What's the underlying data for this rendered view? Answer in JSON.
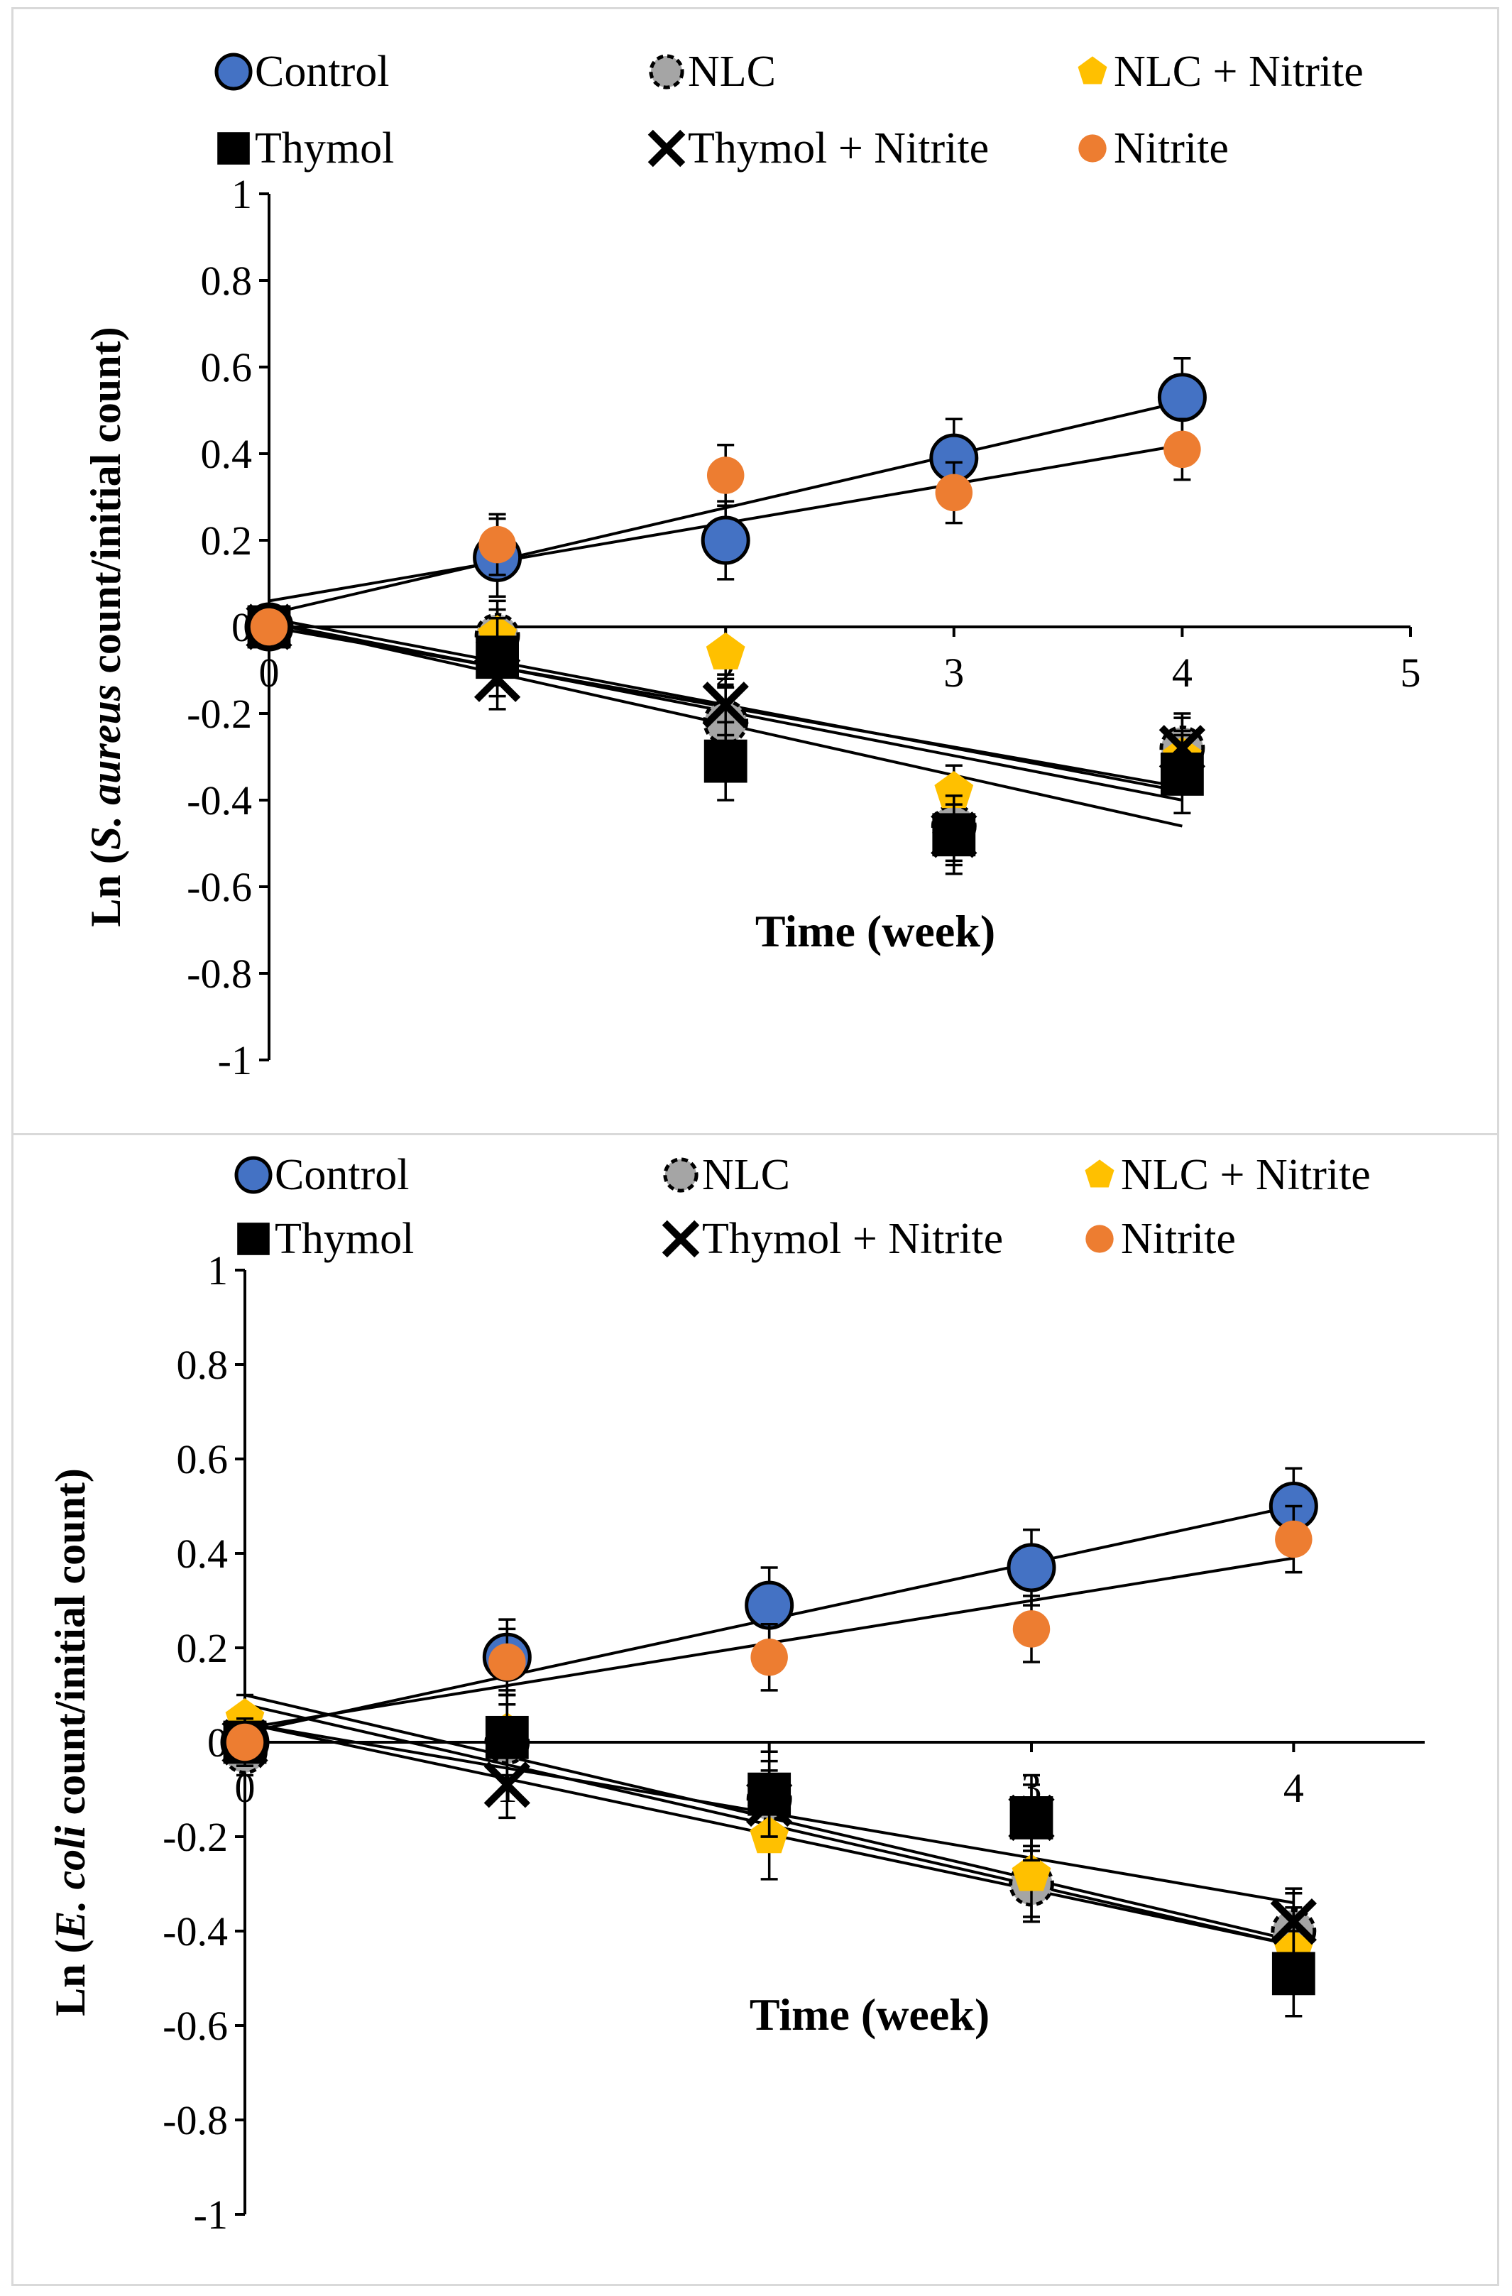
{
  "chart_data": [
    {
      "type": "scatter",
      "title": "",
      "xlabel": "Time (week)",
      "ylabel_prefix": "Ln (",
      "ylabel_species": "S. aureus",
      "ylabel_suffix": " count/initial count)",
      "xlim": [
        0,
        5
      ],
      "ylim": [
        -1,
        1
      ],
      "xticks": [
        "0",
        "1",
        "2",
        "3",
        "4",
        "5"
      ],
      "yticks": [
        "1",
        "0.8",
        "0.6",
        "0.4",
        "0.2",
        "0",
        "-0.2",
        "-0.4",
        "-0.6",
        "-0.8",
        "-1"
      ],
      "legend_position": "top",
      "series": [
        {
          "name": "Control",
          "marker": "circle",
          "color": "#4472C4",
          "x": [
            0,
            1,
            2,
            3,
            4
          ],
          "y": [
            0,
            0.16,
            0.2,
            0.39,
            0.53
          ],
          "err": [
            0.05,
            0.09,
            0.09,
            0.09,
            0.09
          ],
          "trend": [
            0.03,
            0.03,
            0.155,
            0.52
          ]
        },
        {
          "name": "NLC",
          "marker": "circle-grey",
          "color": "#A5A5A5",
          "x": [
            0,
            1,
            2,
            3,
            4
          ],
          "y": [
            0,
            -0.02,
            -0.22,
            -0.46,
            -0.28
          ],
          "err": [
            0.05,
            0.08,
            0.08,
            0.08,
            0.08
          ],
          "trend": [
            0.02,
            0.02,
            -0.1,
            -0.38
          ]
        },
        {
          "name": "NLC + Nitrite",
          "marker": "pentagon",
          "color": "#FFC000",
          "x": [
            0,
            1,
            2,
            3,
            4
          ],
          "y": [
            0,
            -0.02,
            -0.06,
            -0.38,
            -0.3
          ],
          "err": [
            0.05,
            0.06,
            0.06,
            0.06,
            0.06
          ],
          "trend": [
            0.01,
            0.01,
            -0.1,
            -0.4
          ]
        },
        {
          "name": "Thymol",
          "marker": "square",
          "color": "#000000",
          "x": [
            0,
            1,
            2,
            3,
            4
          ],
          "y": [
            0,
            -0.07,
            -0.31,
            -0.48,
            -0.34
          ],
          "err": [
            0.05,
            0.09,
            0.09,
            0.09,
            0.09
          ],
          "trend": [
            0.01,
            0.01,
            -0.118,
            -0.46
          ]
        },
        {
          "name": "Thymol + Nitrite",
          "marker": "x",
          "color": "#000000",
          "x": [
            0,
            1,
            2,
            3,
            4
          ],
          "y": [
            0,
            -0.12,
            -0.18,
            -0.48,
            -0.28
          ],
          "err": [
            0.05,
            0.07,
            0.07,
            0.07,
            0.07
          ],
          "trend": [
            0.0,
            0.0,
            -0.092,
            -0.37
          ]
        },
        {
          "name": "Nitrite",
          "marker": "circle-small",
          "color": "#ED7D31",
          "x": [
            0,
            1,
            2,
            3,
            4
          ],
          "y": [
            0,
            0.19,
            0.35,
            0.31,
            0.41
          ],
          "err": [
            0.05,
            0.07,
            0.07,
            0.07,
            0.07
          ],
          "trend": [
            0.06,
            0.06,
            0.09,
            0.42
          ]
        }
      ]
    },
    {
      "type": "scatter",
      "title": "",
      "xlabel": "Time (week)",
      "ylabel_prefix": "Ln (",
      "ylabel_species": "E. coli",
      "ylabel_suffix": " count/initial count)",
      "xlim": [
        0,
        4.5
      ],
      "ylim": [
        -1,
        1
      ],
      "xticks": [
        "0",
        "1",
        "2",
        "3",
        "4"
      ],
      "yticks": [
        "1",
        "0.8",
        "0.6",
        "0.4",
        "0.2",
        "0",
        "-0.2",
        "-0.4",
        "-0.6",
        "-0.8",
        "-1"
      ],
      "legend_position": "top",
      "series": [
        {
          "name": "Control",
          "marker": "circle",
          "color": "#4472C4",
          "x": [
            0,
            1,
            2,
            3,
            4
          ],
          "y": [
            0,
            0.18,
            0.29,
            0.37,
            0.5
          ],
          "err": [
            0.05,
            0.08,
            0.08,
            0.08,
            0.08
          ],
          "trend": [
            0.02,
            0.02,
            0.12,
            0.5
          ]
        },
        {
          "name": "NLC",
          "marker": "circle-grey",
          "color": "#A5A5A5",
          "x": [
            0,
            1,
            2,
            3,
            4
          ],
          "y": [
            -0.02,
            0.0,
            -0.12,
            -0.3,
            -0.4
          ],
          "err": [
            0.05,
            0.08,
            0.08,
            0.08,
            0.08
          ],
          "trend": [
            0.04,
            0.04,
            -0.117,
            -0.43
          ]
        },
        {
          "name": "NLC + Nitrite",
          "marker": "pentagon",
          "color": "#FFC000",
          "x": [
            0,
            1,
            2,
            3,
            4
          ],
          "y": [
            0.05,
            0.02,
            -0.2,
            -0.28,
            -0.44
          ],
          "err": [
            0.05,
            0.09,
            0.09,
            0.09,
            0.09
          ],
          "trend": [
            0.08,
            0.08,
            -0.127,
            -0.43
          ]
        },
        {
          "name": "Thymol",
          "marker": "square",
          "color": "#000000",
          "x": [
            0,
            1,
            2,
            3,
            4
          ],
          "y": [
            0,
            0.01,
            -0.11,
            -0.16,
            -0.49
          ],
          "err": [
            0.05,
            0.09,
            0.09,
            0.09,
            0.09
          ],
          "trend": [
            0.1,
            0.1,
            -0.131,
            -0.42
          ]
        },
        {
          "name": "Thymol + Nitrite",
          "marker": "x",
          "color": "#000000",
          "x": [
            0,
            1,
            2,
            3,
            4
          ],
          "y": [
            0,
            -0.09,
            -0.13,
            -0.16,
            -0.38
          ],
          "err": [
            0.05,
            0.07,
            0.07,
            0.07,
            0.07
          ],
          "trend": [
            0.04,
            0.04,
            -0.095,
            -0.34
          ]
        },
        {
          "name": "Nitrite",
          "marker": "circle-small",
          "color": "#ED7D31",
          "x": [
            0,
            1,
            2,
            3,
            4
          ],
          "y": [
            0,
            0.17,
            0.18,
            0.24,
            0.43
          ],
          "err": [
            0.05,
            0.07,
            0.07,
            0.07,
            0.07
          ],
          "trend": [
            0.03,
            0.03,
            0.09,
            0.39
          ]
        }
      ]
    }
  ]
}
